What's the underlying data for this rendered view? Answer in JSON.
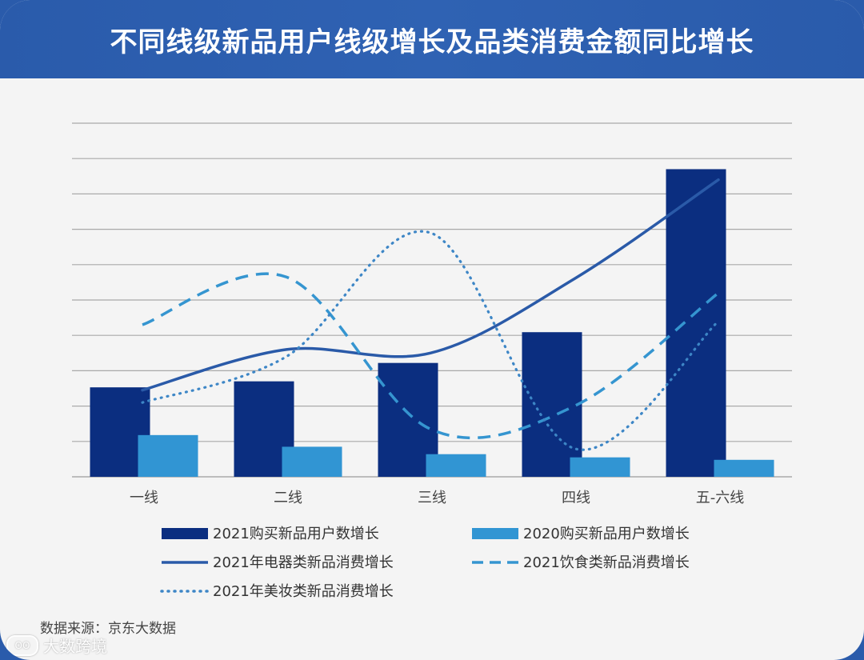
{
  "title": "不同线级新品用户线级增长及品类消费金额同比增长",
  "source": "数据来源：京东大数据",
  "watermark": "大数跨境",
  "colors": {
    "bar2021": "#0b2e80",
    "bar2020": "#3195d3",
    "lineAppliance": "#2a5aa8",
    "lineFood": "#3595d0",
    "lineBeauty": "#3d86c6",
    "grid": "#a9a9a9"
  },
  "chart_data": {
    "type": "bar",
    "title": "不同线级新品用户线级增长及品类消费金额同比增长",
    "categories": [
      "一线",
      "二线",
      "三线",
      "四线",
      "五-六线"
    ],
    "ylim": [
      0,
      10
    ],
    "grid_lines": 10,
    "series": [
      {
        "name": "2021购买新品用户数增长",
        "type": "bar",
        "values": [
          2.53,
          2.7,
          3.22,
          4.09,
          8.7
        ]
      },
      {
        "name": "2020购买新品用户数增长",
        "type": "bar",
        "values": [
          1.18,
          0.85,
          0.64,
          0.55,
          0.48
        ]
      },
      {
        "name": "2021年电器类新品消费增长",
        "type": "line",
        "style": "solid",
        "values": [
          2.45,
          3.6,
          3.5,
          5.6,
          8.4
        ]
      },
      {
        "name": "2021饮食类新品消费增长",
        "type": "line",
        "style": "dashed",
        "values": [
          4.3,
          5.65,
          1.35,
          2.0,
          5.2
        ]
      },
      {
        "name": "2021年美妆类新品消费增长",
        "type": "line",
        "style": "dotted",
        "values": [
          2.1,
          3.4,
          6.9,
          0.8,
          4.4
        ]
      }
    ],
    "legend": [
      "2021购买新品用户数增长",
      "2020购买新品用户数增长",
      "2021年电器类新品消费增长",
      "2021饮食类新品消费增长",
      "2021年美妆类新品消费增长"
    ]
  }
}
